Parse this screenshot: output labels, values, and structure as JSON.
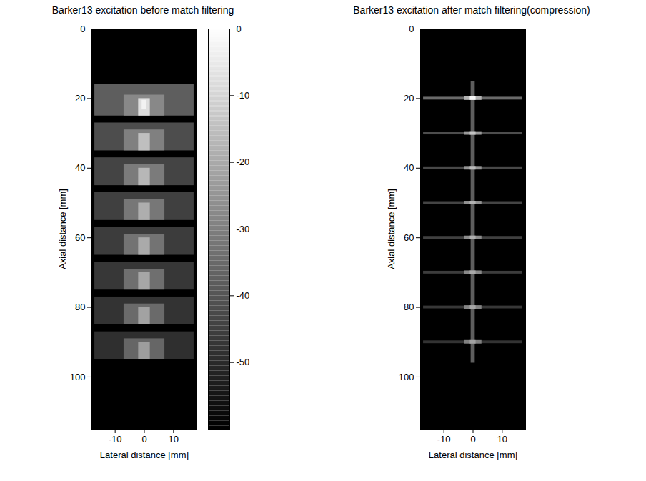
{
  "chart_data": [
    {
      "type": "heatmap",
      "title": "Barker13 excitation before match filtering",
      "x_label": "Lateral distance [mm]",
      "y_label": "Axial distance [mm]",
      "xlim": [
        -18,
        18
      ],
      "xticks": [
        -10,
        0,
        10
      ],
      "ylim": [
        0,
        115
      ],
      "yticks": [
        0,
        20,
        40,
        60,
        80,
        100
      ],
      "background": -60,
      "colorbar": {
        "range": [
          -60,
          0
        ],
        "ticks": [
          0,
          -10,
          -20,
          -30,
          -40,
          -50
        ]
      },
      "cells": [
        {
          "x1": -17,
          "x2": 17,
          "y1": 16,
          "y2": 25,
          "value": -38
        },
        {
          "x1": -7,
          "x2": 7,
          "y1": 19,
          "y2": 25,
          "value": -28
        },
        {
          "x1": -2,
          "x2": 2,
          "y1": 20,
          "y2": 25,
          "value": -8
        },
        {
          "x1": -0.8,
          "x2": 0.8,
          "y1": 20.5,
          "y2": 23,
          "value": -3
        },
        {
          "x1": -17,
          "x2": 17,
          "y1": 27,
          "y2": 35,
          "value": -42
        },
        {
          "x1": -7,
          "x2": 7,
          "y1": 29,
          "y2": 35,
          "value": -30
        },
        {
          "x1": -2,
          "x2": 2,
          "y1": 30,
          "y2": 35,
          "value": -15
        },
        {
          "x1": -17,
          "x2": 17,
          "y1": 37,
          "y2": 45,
          "value": -44
        },
        {
          "x1": -7,
          "x2": 7,
          "y1": 39,
          "y2": 45,
          "value": -31
        },
        {
          "x1": -2,
          "x2": 2,
          "y1": 40,
          "y2": 45,
          "value": -17
        },
        {
          "x1": -17,
          "x2": 17,
          "y1": 47,
          "y2": 55,
          "value": -45
        },
        {
          "x1": -7,
          "x2": 7,
          "y1": 49,
          "y2": 55,
          "value": -32
        },
        {
          "x1": -2,
          "x2": 2,
          "y1": 50,
          "y2": 55,
          "value": -19
        },
        {
          "x1": -17,
          "x2": 17,
          "y1": 57,
          "y2": 65,
          "value": -46
        },
        {
          "x1": -7,
          "x2": 7,
          "y1": 59,
          "y2": 65,
          "value": -33
        },
        {
          "x1": -2,
          "x2": 2,
          "y1": 60,
          "y2": 65,
          "value": -20
        },
        {
          "x1": -17,
          "x2": 17,
          "y1": 67,
          "y2": 75,
          "value": -47
        },
        {
          "x1": -7,
          "x2": 7,
          "y1": 69,
          "y2": 75,
          "value": -34
        },
        {
          "x1": -2,
          "x2": 2,
          "y1": 70,
          "y2": 75,
          "value": -21
        },
        {
          "x1": -17,
          "x2": 17,
          "y1": 77,
          "y2": 85,
          "value": -48
        },
        {
          "x1": -7,
          "x2": 7,
          "y1": 79,
          "y2": 85,
          "value": -35
        },
        {
          "x1": -2,
          "x2": 2,
          "y1": 80,
          "y2": 85,
          "value": -22
        },
        {
          "x1": -17,
          "x2": 17,
          "y1": 87,
          "y2": 95,
          "value": -49
        },
        {
          "x1": -7,
          "x2": 7,
          "y1": 89,
          "y2": 95,
          "value": -36
        },
        {
          "x1": -2,
          "x2": 2,
          "y1": 90,
          "y2": 95,
          "value": -23
        }
      ]
    },
    {
      "type": "heatmap",
      "title": "Barker13 excitation after match filtering(compression)",
      "x_label": "Lateral distance [mm]",
      "y_label": "Axial distance [mm]",
      "xlim": [
        -18,
        18
      ],
      "xticks": [
        -10,
        0,
        10
      ],
      "ylim": [
        0,
        115
      ],
      "yticks": [
        0,
        20,
        40,
        60,
        80,
        100
      ],
      "background": -60,
      "cells": [
        {
          "x1": -0.7,
          "x2": 0.7,
          "y1": 15,
          "y2": 96,
          "value": -38
        },
        {
          "x1": -17,
          "x2": 17,
          "y1": 19.6,
          "y2": 20.4,
          "value": -35
        },
        {
          "x1": -3,
          "x2": 3,
          "y1": 19.5,
          "y2": 20.5,
          "value": -18
        },
        {
          "x1": -1,
          "x2": 1,
          "y1": 19.5,
          "y2": 20.5,
          "value": -2
        },
        {
          "x1": -17,
          "x2": 17,
          "y1": 29.6,
          "y2": 30.4,
          "value": -42
        },
        {
          "x1": -3,
          "x2": 3,
          "y1": 29.5,
          "y2": 30.5,
          "value": -24
        },
        {
          "x1": -1,
          "x2": 1,
          "y1": 29.5,
          "y2": 30.5,
          "value": -14
        },
        {
          "x1": -17,
          "x2": 17,
          "y1": 39.6,
          "y2": 40.4,
          "value": -43
        },
        {
          "x1": -3,
          "x2": 3,
          "y1": 39.5,
          "y2": 40.5,
          "value": -25
        },
        {
          "x1": -1,
          "x2": 1,
          "y1": 39.5,
          "y2": 40.5,
          "value": -16
        },
        {
          "x1": -17,
          "x2": 17,
          "y1": 49.6,
          "y2": 50.4,
          "value": -44
        },
        {
          "x1": -3,
          "x2": 3,
          "y1": 49.5,
          "y2": 50.5,
          "value": -26
        },
        {
          "x1": -1,
          "x2": 1,
          "y1": 49.5,
          "y2": 50.5,
          "value": -18
        },
        {
          "x1": -17,
          "x2": 17,
          "y1": 59.6,
          "y2": 60.4,
          "value": -45
        },
        {
          "x1": -3,
          "x2": 3,
          "y1": 59.5,
          "y2": 60.5,
          "value": -27
        },
        {
          "x1": -1,
          "x2": 1,
          "y1": 59.5,
          "y2": 60.5,
          "value": -19
        },
        {
          "x1": -17,
          "x2": 17,
          "y1": 69.6,
          "y2": 70.4,
          "value": -46
        },
        {
          "x1": -3,
          "x2": 3,
          "y1": 69.5,
          "y2": 70.5,
          "value": -28
        },
        {
          "x1": -1,
          "x2": 1,
          "y1": 69.5,
          "y2": 70.5,
          "value": -20
        },
        {
          "x1": -17,
          "x2": 17,
          "y1": 79.6,
          "y2": 80.4,
          "value": -47
        },
        {
          "x1": -3,
          "x2": 3,
          "y1": 79.5,
          "y2": 80.5,
          "value": -29
        },
        {
          "x1": -1,
          "x2": 1,
          "y1": 79.5,
          "y2": 80.5,
          "value": -21
        },
        {
          "x1": -17,
          "x2": 17,
          "y1": 89.6,
          "y2": 90.4,
          "value": -48
        },
        {
          "x1": -3,
          "x2": 3,
          "y1": 89.5,
          "y2": 90.5,
          "value": -30
        },
        {
          "x1": -1,
          "x2": 1,
          "y1": 89.5,
          "y2": 90.5,
          "value": -22
        }
      ]
    }
  ]
}
